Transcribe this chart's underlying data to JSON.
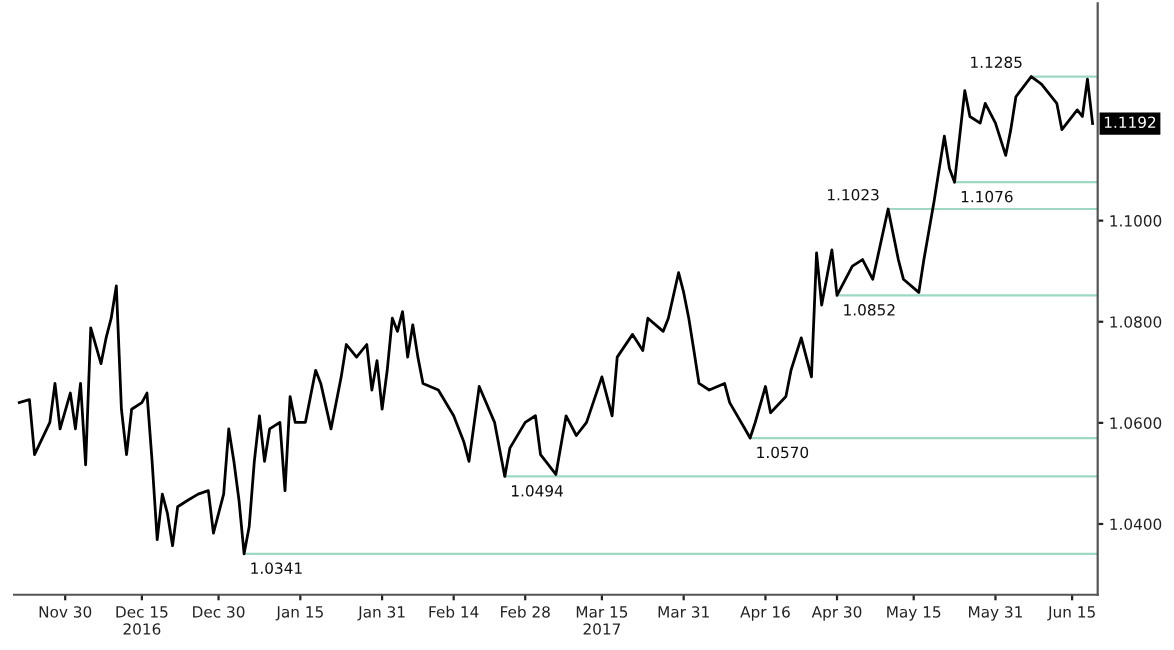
{
  "chart_data": {
    "type": "line",
    "x": [
      "2016-11-21",
      "2016-11-23",
      "2016-11-24",
      "2016-11-27",
      "2016-11-28",
      "2016-11-29",
      "2016-12-01",
      "2016-12-02",
      "2016-12-03",
      "2016-12-04",
      "2016-12-05",
      "2016-12-07",
      "2016-12-08",
      "2016-12-09",
      "2016-12-10",
      "2016-12-11",
      "2016-12-12",
      "2016-12-13",
      "2016-12-15",
      "2016-12-16",
      "2016-12-17",
      "2016-12-18",
      "2016-12-19",
      "2016-12-20",
      "2016-12-21",
      "2016-12-22",
      "2016-12-24",
      "2016-12-26",
      "2016-12-28",
      "2016-12-29",
      "2016-12-31",
      "2017-01-01",
      "2017-01-02",
      "2017-01-03",
      "2017-01-04",
      "2017-01-05",
      "2017-01-06",
      "2017-01-07",
      "2017-01-08",
      "2017-01-09",
      "2017-01-11",
      "2017-01-12",
      "2017-01-13",
      "2017-01-14",
      "2017-01-16",
      "2017-01-18",
      "2017-01-19",
      "2017-01-21",
      "2017-01-23",
      "2017-01-24",
      "2017-01-26",
      "2017-01-28",
      "2017-01-29",
      "2017-01-30",
      "2017-01-31",
      "2017-02-01",
      "2017-02-02",
      "2017-02-03",
      "2017-02-04",
      "2017-02-05",
      "2017-02-06",
      "2017-02-07",
      "2017-02-08",
      "2017-02-11",
      "2017-02-14",
      "2017-02-16",
      "2017-02-17",
      "2017-02-19",
      "2017-02-22",
      "2017-02-24",
      "2017-02-25",
      "2017-02-28",
      "2017-03-02",
      "2017-03-03",
      "2017-03-06",
      "2017-03-08",
      "2017-03-10",
      "2017-03-12",
      "2017-03-15",
      "2017-03-16",
      "2017-03-17",
      "2017-03-18",
      "2017-03-21",
      "2017-03-23",
      "2017-03-24",
      "2017-03-27",
      "2017-03-28",
      "2017-03-30",
      "2017-03-31",
      "2017-04-01",
      "2017-04-02",
      "2017-04-03",
      "2017-04-05",
      "2017-04-08",
      "2017-04-09",
      "2017-04-12",
      "2017-04-13",
      "2017-04-14",
      "2017-04-16",
      "2017-04-17",
      "2017-04-20",
      "2017-04-21",
      "2017-04-23",
      "2017-04-25",
      "2017-04-26",
      "2017-04-27",
      "2017-04-29",
      "2017-04-30",
      "2017-05-03",
      "2017-05-05",
      "2017-05-07",
      "2017-05-10",
      "2017-05-12",
      "2017-05-13",
      "2017-05-16",
      "2017-05-17",
      "2017-05-19",
      "2017-05-21",
      "2017-05-22",
      "2017-05-23",
      "2017-05-25",
      "2017-05-26",
      "2017-05-28",
      "2017-05-29",
      "2017-05-31",
      "2017-06-02",
      "2017-06-03",
      "2017-06-04",
      "2017-06-07",
      "2017-06-09",
      "2017-06-12",
      "2017-06-13",
      "2017-06-16",
      "2017-06-17",
      "2017-06-18",
      "2017-06-19"
    ],
    "series": [
      {
        "color": "#000000",
        "values": [
          1.064,
          1.0646,
          1.0537,
          1.0601,
          1.0678,
          1.0588,
          1.0659,
          1.0588,
          1.0678,
          1.0517,
          1.0788,
          1.0717,
          1.0768,
          1.0807,
          1.0871,
          1.0627,
          1.0537,
          1.0627,
          1.064,
          1.0659,
          1.0524,
          1.0369,
          1.0459,
          1.0421,
          1.0357,
          1.0434,
          1.0447,
          1.0459,
          1.0466,
          1.0382,
          1.0459,
          1.0588,
          1.0524,
          1.0447,
          1.0341,
          1.0395,
          1.0524,
          1.0614,
          1.0524,
          1.0588,
          1.0601,
          1.0466,
          1.0652,
          1.0601,
          1.0601,
          1.0704,
          1.0678,
          1.0588,
          1.0691,
          1.0755,
          1.073,
          1.0755,
          1.0665,
          1.0723,
          1.0627,
          1.0704,
          1.0807,
          1.0781,
          1.082,
          1.073,
          1.0794,
          1.073,
          1.0678,
          1.0665,
          1.0614,
          1.0562,
          1.0524,
          1.0672,
          1.0601,
          1.0494,
          1.055,
          1.0601,
          1.0614,
          1.0537,
          1.0498,
          1.0614,
          1.0575,
          1.0601,
          1.0691,
          1.0652,
          1.0614,
          1.073,
          1.0775,
          1.0743,
          1.0807,
          1.0781,
          1.0807,
          1.0897,
          1.0858,
          1.0807,
          1.0743,
          1.0678,
          1.0665,
          1.0678,
          1.064,
          1.0588,
          1.057,
          1.0601,
          1.0672,
          1.062,
          1.0652,
          1.0704,
          1.0768,
          1.0691,
          1.0936,
          1.0833,
          1.0942,
          1.0852,
          1.091,
          1.0923,
          1.0884,
          1.1023,
          1.0923,
          1.0884,
          1.0858,
          1.0923,
          1.1039,
          1.1167,
          1.1103,
          1.1076,
          1.1257,
          1.1206,
          1.1193,
          1.1232,
          1.1193,
          1.1129,
          1.118,
          1.1245,
          1.1285,
          1.127,
          1.1232,
          1.118,
          1.1219,
          1.1206,
          1.128,
          1.1192
        ]
      }
    ],
    "xlim": [
      "2016-11-20",
      "2017-06-20"
    ],
    "xticks": [
      {
        "value": "2016-11-30",
        "label": "Nov 30"
      },
      {
        "value": "2016-12-15",
        "label": "Dec 15\n2016"
      },
      {
        "value": "2016-12-30",
        "label": "Dec 30"
      },
      {
        "value": "2017-01-15",
        "label": "Jan 15"
      },
      {
        "value": "2017-01-31",
        "label": "Jan 31"
      },
      {
        "value": "2017-02-14",
        "label": "Feb 14"
      },
      {
        "value": "2017-02-28",
        "label": "Feb 28"
      },
      {
        "value": "2017-03-15",
        "label": "Mar 15\n2017"
      },
      {
        "value": "2017-03-31",
        "label": "Mar 31"
      },
      {
        "value": "2017-04-16",
        "label": "Apr 16"
      },
      {
        "value": "2017-04-30",
        "label": "Apr 30"
      },
      {
        "value": "2017-05-15",
        "label": "May 15"
      },
      {
        "value": "2017-05-31",
        "label": "May 31"
      },
      {
        "value": "2017-06-15",
        "label": "Jun 15"
      }
    ],
    "ylim": [
      1.026,
      1.143
    ],
    "yticks": [
      {
        "value": 1.04,
        "label": "1.0400"
      },
      {
        "value": 1.06,
        "label": "1.0600"
      },
      {
        "value": 1.08,
        "label": "1.0800"
      },
      {
        "value": 1.1,
        "label": "1.1000"
      }
    ],
    "grid": false,
    "marker": "none",
    "line_style": "solid",
    "annotations": [
      {
        "text": "1.0341",
        "x": "2017-01-04",
        "y": 1.0341
      },
      {
        "text": "1.0494",
        "x": "2017-02-24",
        "y": 1.0494
      },
      {
        "text": "1.0570",
        "x": "2017-04-13",
        "y": 1.057
      },
      {
        "text": "1.0852",
        "x": "2017-04-30",
        "y": 1.0852
      },
      {
        "text": "1.1023",
        "x": "2017-05-10",
        "y": 1.1023
      },
      {
        "text": "1.1076",
        "x": "2017-05-23",
        "y": 1.1076
      },
      {
        "text": "1.1285",
        "x": "2017-06-07",
        "y": 1.1285
      },
      {
        "text": "1.1192",
        "x": "2017-06-19",
        "y": 1.1192
      }
    ]
  }
}
